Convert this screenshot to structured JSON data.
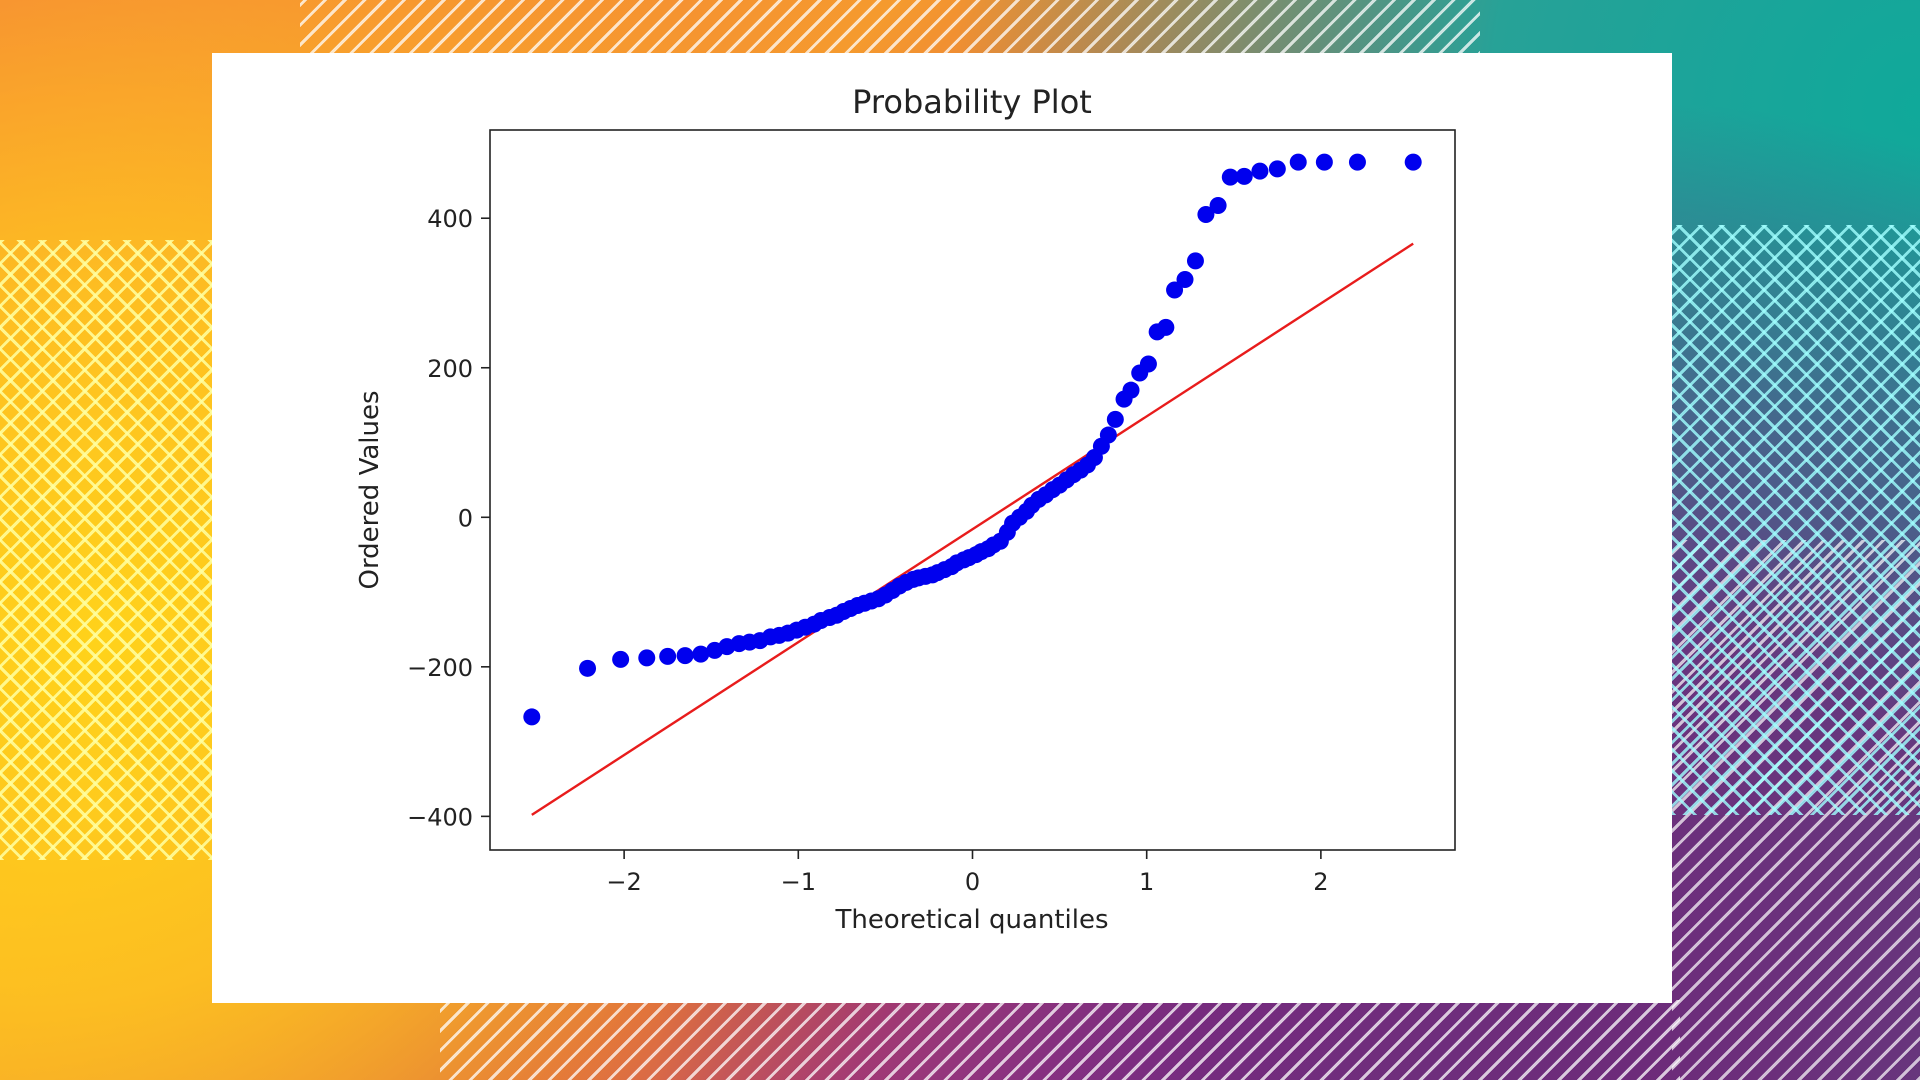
{
  "chart_data": {
    "type": "scatter",
    "title": "Probability Plot",
    "xlabel": "Theoretical quantiles",
    "ylabel": "Ordered Values",
    "xlim": [
      -2.77,
      2.77
    ],
    "ylim": [
      -445,
      518
    ],
    "xticks": [
      -2,
      -1,
      0,
      1,
      2
    ],
    "yticks": [
      -400,
      -200,
      0,
      200,
      400
    ],
    "xtick_labels": [
      "−2",
      "−1",
      "0",
      "1",
      "2"
    ],
    "ytick_labels": [
      "−400",
      "−200",
      "0",
      "200",
      "400"
    ],
    "grid": false,
    "series": [
      {
        "marker_color": "#0000ee",
        "x": [
          -2.53,
          -2.21,
          -2.02,
          -1.87,
          -1.75,
          -1.65,
          -1.56,
          -1.48,
          -1.41,
          -1.34,
          -1.28,
          -1.22,
          -1.16,
          -1.11,
          -1.06,
          -1.01,
          -0.96,
          -0.91,
          -0.87,
          -0.82,
          -0.78,
          -0.74,
          -0.7,
          -0.66,
          -0.62,
          -0.58,
          -0.54,
          -0.5,
          -0.46,
          -0.42,
          -0.38,
          -0.34,
          -0.31,
          -0.27,
          -0.23,
          -0.2,
          -0.16,
          -0.12,
          -0.09,
          -0.05,
          -0.02,
          0.02,
          0.05,
          0.09,
          0.12,
          0.16,
          0.2,
          0.23,
          0.27,
          0.31,
          0.34,
          0.38,
          0.42,
          0.46,
          0.5,
          0.54,
          0.58,
          0.62,
          0.66,
          0.7,
          0.74,
          0.78,
          0.82,
          0.87,
          0.91,
          0.96,
          1.01,
          1.06,
          1.11,
          1.16,
          1.22,
          1.28,
          1.34,
          1.41,
          1.48,
          1.56,
          1.65,
          1.75,
          1.87,
          2.02,
          2.21,
          2.53
        ],
        "y": [
          -267,
          -202,
          -190,
          -188,
          -186,
          -185,
          -183,
          -178,
          -173,
          -169,
          -167,
          -165,
          -160,
          -158,
          -155,
          -151,
          -147,
          -143,
          -138,
          -134,
          -131,
          -126,
          -122,
          -118,
          -115,
          -112,
          -109,
          -104,
          -98,
          -92,
          -87,
          -83,
          -81,
          -79,
          -77,
          -74,
          -70,
          -66,
          -61,
          -57,
          -54,
          -50,
          -46,
          -42,
          -37,
          -32,
          -20,
          -8,
          0,
          8,
          16,
          24,
          30,
          37,
          43,
          50,
          57,
          63,
          70,
          80,
          95,
          110,
          131,
          158,
          170,
          193,
          205,
          248,
          254,
          304,
          318,
          343,
          405,
          417,
          455,
          456,
          463,
          466,
          475,
          475,
          475,
          475
        ]
      }
    ],
    "fit_line": {
      "color": "#e81c1c",
      "x": [
        -2.53,
        2.53
      ],
      "y": [
        -398,
        366
      ]
    }
  }
}
